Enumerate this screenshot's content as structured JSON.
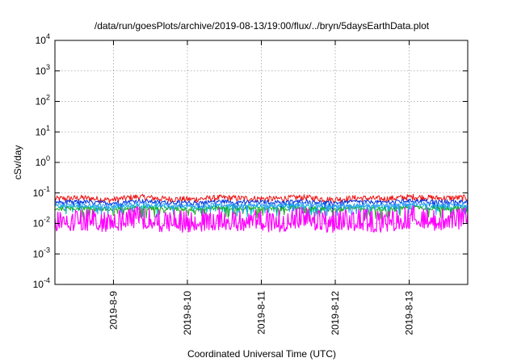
{
  "chart_data": {
    "type": "line",
    "title": "/data/run/goesPlots/archive/2019-08-13/19:00/flux/../bryn/5daysEarthData.plot",
    "xlabel": "Coordinated Universal Time (UTC)",
    "ylabel": "cSv/day",
    "y_scale": "log",
    "ylim": [
      0.0001,
      10000
    ],
    "y_ticks": [
      {
        "base": "10",
        "exp": "-4"
      },
      {
        "base": "10",
        "exp": "-3"
      },
      {
        "base": "10",
        "exp": "-2"
      },
      {
        "base": "10",
        "exp": "-1"
      },
      {
        "base": "10",
        "exp": "0"
      },
      {
        "base": "10",
        "exp": "1"
      },
      {
        "base": "10",
        "exp": "2"
      },
      {
        "base": "10",
        "exp": "3"
      },
      {
        "base": "10",
        "exp": "4"
      }
    ],
    "xlim": [
      "2019-08-08T05:00",
      "2019-08-13T19:00"
    ],
    "x_ticks": [
      "2019-8-9",
      "2019-8-10",
      "2019-8-11",
      "2019-8-12",
      "2019-8-13"
    ],
    "grid": true,
    "series": [
      {
        "color": "#ee1111",
        "values": [
          0.06,
          0.065,
          0.055,
          0.07,
          0.06,
          0.058,
          0.066,
          0.062,
          0.06,
          0.068,
          0.057,
          0.064,
          0.06,
          0.07,
          0.063,
          0.066
        ]
      },
      {
        "color": "#0033dd",
        "values": [
          0.05,
          0.052,
          0.046,
          0.055,
          0.05,
          0.048,
          0.053,
          0.051,
          0.05,
          0.054,
          0.047,
          0.052,
          0.05,
          0.056,
          0.052,
          0.053
        ]
      },
      {
        "color": "#00bbbb",
        "values": [
          0.035,
          0.037,
          0.033,
          0.038,
          0.035,
          0.034,
          0.037,
          0.036,
          0.035,
          0.038,
          0.033,
          0.036,
          0.035,
          0.039,
          0.036,
          0.037
        ]
      },
      {
        "color": "#22aa22",
        "values": [
          0.03,
          0.032,
          0.028,
          0.033,
          0.03,
          0.029,
          0.032,
          0.031,
          0.03,
          0.033,
          0.028,
          0.031,
          0.03,
          0.034,
          0.031,
          0.032
        ]
      },
      {
        "color": "#3399ff",
        "values": [
          0.04,
          0.042,
          0.038,
          0.044,
          0.04,
          0.039,
          0.042,
          0.041,
          0.04,
          0.043,
          0.038,
          0.041,
          0.04,
          0.045,
          0.041,
          0.042
        ]
      },
      {
        "color": "#ff00ff",
        "values": [
          0.009,
          0.011,
          0.008,
          0.012,
          0.009,
          0.0085,
          0.011,
          0.01,
          0.009,
          0.012,
          0.008,
          0.01,
          0.009,
          0.013,
          0.01,
          0.011
        ]
      }
    ]
  }
}
